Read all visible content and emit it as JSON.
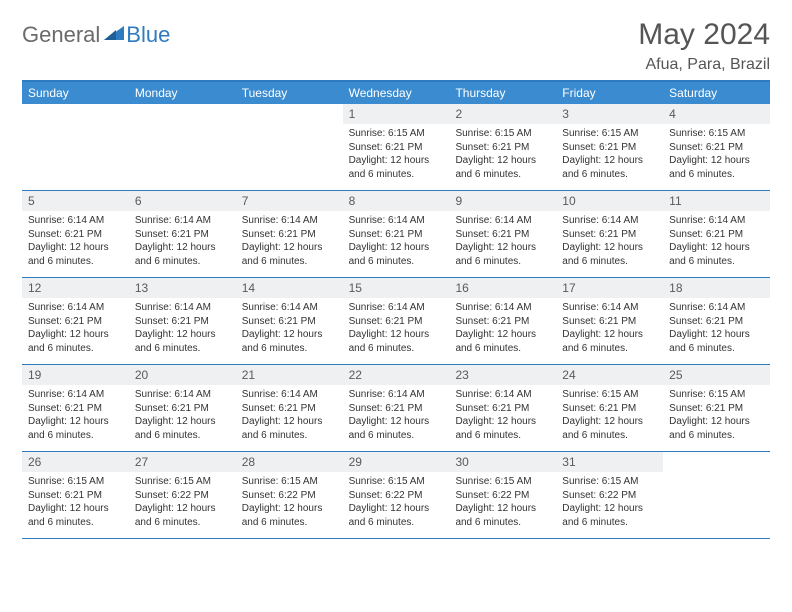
{
  "logo": {
    "part1": "General",
    "part2": "Blue"
  },
  "header": {
    "month_title": "May 2024",
    "location": "Afua, Para, Brazil"
  },
  "colors": {
    "header_bg": "#3b8bd0",
    "header_border": "#2e7bbf",
    "daynum_bg": "#eef0f2",
    "text": "#333333",
    "logo_gray": "#6b6b6b",
    "logo_blue": "#2e7bbf"
  },
  "day_names": [
    "Sunday",
    "Monday",
    "Tuesday",
    "Wednesday",
    "Thursday",
    "Friday",
    "Saturday"
  ],
  "weeks": [
    [
      {
        "empty": true
      },
      {
        "empty": true
      },
      {
        "empty": true
      },
      {
        "num": "1",
        "sunrise": "6:15 AM",
        "sunset": "6:21 PM",
        "daylight": "12 hours and 6 minutes."
      },
      {
        "num": "2",
        "sunrise": "6:15 AM",
        "sunset": "6:21 PM",
        "daylight": "12 hours and 6 minutes."
      },
      {
        "num": "3",
        "sunrise": "6:15 AM",
        "sunset": "6:21 PM",
        "daylight": "12 hours and 6 minutes."
      },
      {
        "num": "4",
        "sunrise": "6:15 AM",
        "sunset": "6:21 PM",
        "daylight": "12 hours and 6 minutes."
      }
    ],
    [
      {
        "num": "5",
        "sunrise": "6:14 AM",
        "sunset": "6:21 PM",
        "daylight": "12 hours and 6 minutes."
      },
      {
        "num": "6",
        "sunrise": "6:14 AM",
        "sunset": "6:21 PM",
        "daylight": "12 hours and 6 minutes."
      },
      {
        "num": "7",
        "sunrise": "6:14 AM",
        "sunset": "6:21 PM",
        "daylight": "12 hours and 6 minutes."
      },
      {
        "num": "8",
        "sunrise": "6:14 AM",
        "sunset": "6:21 PM",
        "daylight": "12 hours and 6 minutes."
      },
      {
        "num": "9",
        "sunrise": "6:14 AM",
        "sunset": "6:21 PM",
        "daylight": "12 hours and 6 minutes."
      },
      {
        "num": "10",
        "sunrise": "6:14 AM",
        "sunset": "6:21 PM",
        "daylight": "12 hours and 6 minutes."
      },
      {
        "num": "11",
        "sunrise": "6:14 AM",
        "sunset": "6:21 PM",
        "daylight": "12 hours and 6 minutes."
      }
    ],
    [
      {
        "num": "12",
        "sunrise": "6:14 AM",
        "sunset": "6:21 PM",
        "daylight": "12 hours and 6 minutes."
      },
      {
        "num": "13",
        "sunrise": "6:14 AM",
        "sunset": "6:21 PM",
        "daylight": "12 hours and 6 minutes."
      },
      {
        "num": "14",
        "sunrise": "6:14 AM",
        "sunset": "6:21 PM",
        "daylight": "12 hours and 6 minutes."
      },
      {
        "num": "15",
        "sunrise": "6:14 AM",
        "sunset": "6:21 PM",
        "daylight": "12 hours and 6 minutes."
      },
      {
        "num": "16",
        "sunrise": "6:14 AM",
        "sunset": "6:21 PM",
        "daylight": "12 hours and 6 minutes."
      },
      {
        "num": "17",
        "sunrise": "6:14 AM",
        "sunset": "6:21 PM",
        "daylight": "12 hours and 6 minutes."
      },
      {
        "num": "18",
        "sunrise": "6:14 AM",
        "sunset": "6:21 PM",
        "daylight": "12 hours and 6 minutes."
      }
    ],
    [
      {
        "num": "19",
        "sunrise": "6:14 AM",
        "sunset": "6:21 PM",
        "daylight": "12 hours and 6 minutes."
      },
      {
        "num": "20",
        "sunrise": "6:14 AM",
        "sunset": "6:21 PM",
        "daylight": "12 hours and 6 minutes."
      },
      {
        "num": "21",
        "sunrise": "6:14 AM",
        "sunset": "6:21 PM",
        "daylight": "12 hours and 6 minutes."
      },
      {
        "num": "22",
        "sunrise": "6:14 AM",
        "sunset": "6:21 PM",
        "daylight": "12 hours and 6 minutes."
      },
      {
        "num": "23",
        "sunrise": "6:14 AM",
        "sunset": "6:21 PM",
        "daylight": "12 hours and 6 minutes."
      },
      {
        "num": "24",
        "sunrise": "6:15 AM",
        "sunset": "6:21 PM",
        "daylight": "12 hours and 6 minutes."
      },
      {
        "num": "25",
        "sunrise": "6:15 AM",
        "sunset": "6:21 PM",
        "daylight": "12 hours and 6 minutes."
      }
    ],
    [
      {
        "num": "26",
        "sunrise": "6:15 AM",
        "sunset": "6:21 PM",
        "daylight": "12 hours and 6 minutes."
      },
      {
        "num": "27",
        "sunrise": "6:15 AM",
        "sunset": "6:22 PM",
        "daylight": "12 hours and 6 minutes."
      },
      {
        "num": "28",
        "sunrise": "6:15 AM",
        "sunset": "6:22 PM",
        "daylight": "12 hours and 6 minutes."
      },
      {
        "num": "29",
        "sunrise": "6:15 AM",
        "sunset": "6:22 PM",
        "daylight": "12 hours and 6 minutes."
      },
      {
        "num": "30",
        "sunrise": "6:15 AM",
        "sunset": "6:22 PM",
        "daylight": "12 hours and 6 minutes."
      },
      {
        "num": "31",
        "sunrise": "6:15 AM",
        "sunset": "6:22 PM",
        "daylight": "12 hours and 6 minutes."
      },
      {
        "empty": true
      }
    ]
  ],
  "labels": {
    "sunrise": "Sunrise: ",
    "sunset": "Sunset: ",
    "daylight": "Daylight: "
  }
}
